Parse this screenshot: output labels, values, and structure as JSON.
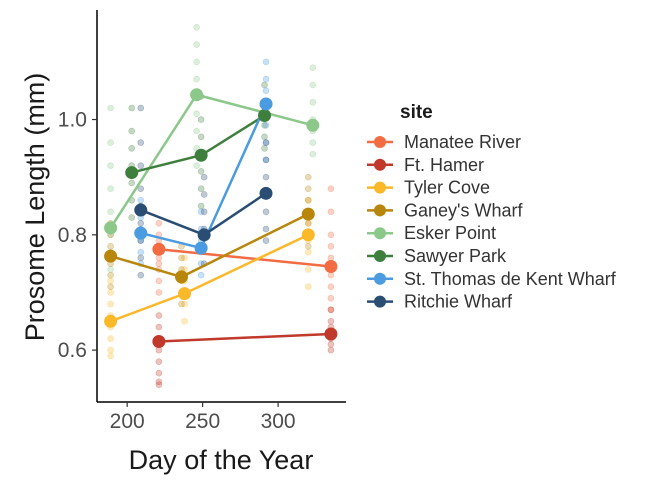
{
  "chart_data": {
    "type": "scatter",
    "title": "",
    "xlabel": "Day of the Year",
    "ylabel": "Prosome Length (mm)",
    "xlim": [
      180,
      345
    ],
    "ylim": [
      0.51,
      1.19
    ],
    "x_ticks": [
      200,
      250,
      300
    ],
    "y_ticks": [
      0.6,
      0.8,
      1.0
    ],
    "x_tick_labels": [
      "200",
      "250",
      "300"
    ],
    "y_tick_labels": [
      "0.6",
      "0.8",
      "1.0"
    ],
    "grid": false,
    "legend": {
      "title": "site",
      "placement": "right"
    },
    "series": [
      {
        "name": "Manatee River",
        "color": "#F26B43",
        "means": [
          [
            221,
            0.775
          ],
          [
            335,
            0.745
          ]
        ],
        "points": [
          [
            221,
            0.82
          ],
          [
            221,
            0.8
          ],
          [
            221,
            0.79
          ],
          [
            221,
            0.78
          ],
          [
            221,
            0.76
          ],
          [
            221,
            0.75
          ],
          [
            221,
            0.74
          ],
          [
            221,
            0.72
          ],
          [
            221,
            0.7
          ],
          [
            335,
            0.88
          ],
          [
            335,
            0.84
          ],
          [
            335,
            0.8
          ],
          [
            335,
            0.78
          ],
          [
            335,
            0.76
          ],
          [
            335,
            0.73
          ],
          [
            335,
            0.71
          ],
          [
            335,
            0.69
          ],
          [
            335,
            0.67
          ]
        ]
      },
      {
        "name": "Ft. Hamer",
        "color": "#C0392B",
        "means": [
          [
            221,
            0.615
          ],
          [
            335,
            0.628
          ]
        ],
        "points": [
          [
            221,
            0.66
          ],
          [
            221,
            0.64
          ],
          [
            221,
            0.62
          ],
          [
            221,
            0.6
          ],
          [
            221,
            0.58
          ],
          [
            221,
            0.56
          ],
          [
            221,
            0.545
          ],
          [
            221,
            0.54
          ],
          [
            335,
            0.67
          ],
          [
            335,
            0.65
          ],
          [
            335,
            0.64
          ],
          [
            335,
            0.62
          ],
          [
            335,
            0.61
          ],
          [
            335,
            0.6
          ]
        ]
      },
      {
        "name": "Tyler Cove",
        "color": "#FBB829",
        "means": [
          [
            189,
            0.65
          ],
          [
            238,
            0.698
          ],
          [
            320,
            0.8
          ]
        ],
        "points": [
          [
            189,
            0.72
          ],
          [
            189,
            0.7
          ],
          [
            189,
            0.68
          ],
          [
            189,
            0.66
          ],
          [
            189,
            0.64
          ],
          [
            189,
            0.62
          ],
          [
            189,
            0.6
          ],
          [
            189,
            0.59
          ],
          [
            238,
            0.76
          ],
          [
            238,
            0.74
          ],
          [
            238,
            0.72
          ],
          [
            238,
            0.7
          ],
          [
            238,
            0.68
          ],
          [
            238,
            0.65
          ],
          [
            320,
            0.86
          ],
          [
            320,
            0.84
          ],
          [
            320,
            0.82
          ],
          [
            320,
            0.79
          ],
          [
            320,
            0.77
          ],
          [
            320,
            0.74
          ],
          [
            320,
            0.71
          ]
        ]
      },
      {
        "name": "Ganey's Wharf",
        "color": "#B8860B",
        "means": [
          [
            189,
            0.763
          ],
          [
            236,
            0.727
          ],
          [
            320,
            0.836
          ]
        ],
        "points": [
          [
            189,
            0.82
          ],
          [
            189,
            0.8
          ],
          [
            189,
            0.78
          ],
          [
            189,
            0.75
          ],
          [
            189,
            0.73
          ],
          [
            189,
            0.71
          ],
          [
            236,
            0.78
          ],
          [
            236,
            0.76
          ],
          [
            236,
            0.74
          ],
          [
            236,
            0.72
          ],
          [
            236,
            0.7
          ],
          [
            236,
            0.68
          ],
          [
            320,
            0.9
          ],
          [
            320,
            0.88
          ],
          [
            320,
            0.86
          ],
          [
            320,
            0.84
          ],
          [
            320,
            0.82
          ],
          [
            320,
            0.8
          ],
          [
            320,
            0.78
          ]
        ]
      },
      {
        "name": "Esker Point",
        "color": "#8BC88A",
        "means": [
          [
            189,
            0.812
          ],
          [
            246,
            1.043
          ],
          [
            323,
            0.99
          ]
        ],
        "points": [
          [
            189,
            1.02
          ],
          [
            189,
            0.96
          ],
          [
            189,
            0.92
          ],
          [
            189,
            0.88
          ],
          [
            189,
            0.84
          ],
          [
            189,
            0.8
          ],
          [
            189,
            0.77
          ],
          [
            189,
            0.74
          ],
          [
            246,
            1.16
          ],
          [
            246,
            1.13
          ],
          [
            246,
            1.1
          ],
          [
            246,
            1.07
          ],
          [
            246,
            1.04
          ],
          [
            246,
            1.01
          ],
          [
            246,
            0.98
          ],
          [
            246,
            0.95
          ],
          [
            246,
            0.92
          ],
          [
            323,
            1.09
          ],
          [
            323,
            1.06
          ],
          [
            323,
            1.03
          ],
          [
            323,
            1.0
          ],
          [
            323,
            0.98
          ],
          [
            323,
            0.96
          ],
          [
            323,
            0.94
          ]
        ]
      },
      {
        "name": "Sawyer Park",
        "color": "#3E7F3E",
        "means": [
          [
            203,
            0.908
          ],
          [
            249,
            0.938
          ],
          [
            291,
            1.007
          ]
        ],
        "points": [
          [
            203,
            1.02
          ],
          [
            203,
            0.98
          ],
          [
            203,
            0.95
          ],
          [
            203,
            0.92
          ],
          [
            203,
            0.89
          ],
          [
            203,
            0.86
          ],
          [
            203,
            0.83
          ],
          [
            249,
            1.04
          ],
          [
            249,
            1.0
          ],
          [
            249,
            0.97
          ],
          [
            249,
            0.94
          ],
          [
            249,
            0.91
          ],
          [
            249,
            0.88
          ],
          [
            249,
            0.85
          ],
          [
            291,
            1.06
          ],
          [
            291,
            1.03
          ],
          [
            291,
            1.01
          ],
          [
            291,
            0.99
          ],
          [
            291,
            0.97
          ],
          [
            291,
            0.95
          ]
        ]
      },
      {
        "name": "St. Thomas de Kent Wharf",
        "color": "#4A9BE0",
        "means": [
          [
            209,
            0.803
          ],
          [
            249,
            0.777
          ],
          [
            292,
            1.027
          ]
        ],
        "points": [
          [
            209,
            0.86
          ],
          [
            209,
            0.83
          ],
          [
            209,
            0.81
          ],
          [
            209,
            0.79
          ],
          [
            209,
            0.77
          ],
          [
            209,
            0.75
          ],
          [
            249,
            0.84
          ],
          [
            249,
            0.81
          ],
          [
            249,
            0.79
          ],
          [
            249,
            0.77
          ],
          [
            249,
            0.75
          ],
          [
            249,
            0.73
          ],
          [
            292,
            1.1
          ],
          [
            292,
            1.07
          ],
          [
            292,
            1.05
          ],
          [
            292,
            1.03
          ],
          [
            292,
            1.01
          ],
          [
            292,
            0.99
          ],
          [
            292,
            0.96
          ],
          [
            292,
            0.93
          ]
        ]
      },
      {
        "name": "Ritchie Wharf",
        "color": "#2A4D74",
        "means": [
          [
            209,
            0.843
          ],
          [
            251,
            0.8
          ],
          [
            292,
            0.872
          ]
        ],
        "points": [
          [
            209,
            1.02
          ],
          [
            209,
            0.96
          ],
          [
            209,
            0.92
          ],
          [
            209,
            0.88
          ],
          [
            209,
            0.85
          ],
          [
            209,
            0.82
          ],
          [
            209,
            0.79
          ],
          [
            209,
            0.76
          ],
          [
            209,
            0.73
          ],
          [
            251,
            0.94
          ],
          [
            251,
            0.9
          ],
          [
            251,
            0.87
          ],
          [
            251,
            0.84
          ],
          [
            251,
            0.81
          ],
          [
            251,
            0.78
          ],
          [
            251,
            0.75
          ],
          [
            292,
            0.96
          ],
          [
            292,
            0.93
          ],
          [
            292,
            0.9
          ],
          [
            292,
            0.87
          ],
          [
            292,
            0.84
          ],
          [
            292,
            0.81
          ],
          [
            292,
            0.79
          ]
        ]
      }
    ]
  }
}
